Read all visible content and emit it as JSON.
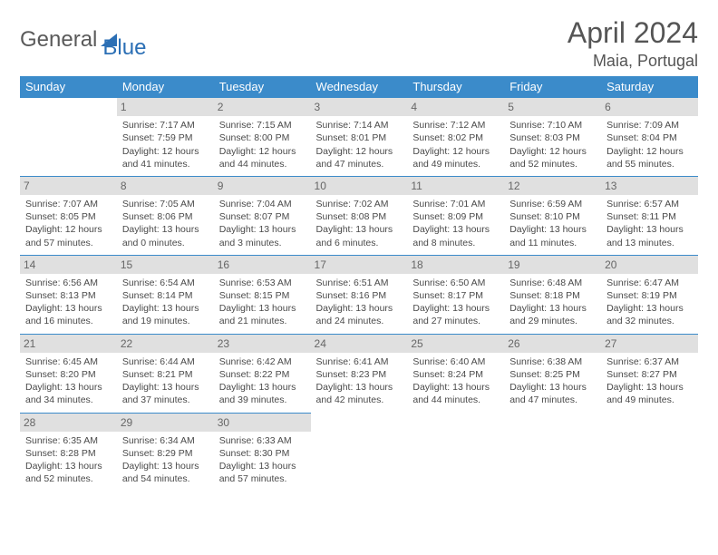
{
  "logo": {
    "part1": "General",
    "part2": "Blue"
  },
  "title": "April 2024",
  "location": "Maia, Portugal",
  "dayNames": [
    "Sunday",
    "Monday",
    "Tuesday",
    "Wednesday",
    "Thursday",
    "Friday",
    "Saturday"
  ],
  "colors": {
    "header_bg": "#3b8bca",
    "header_text": "#ffffff",
    "daynum_bg": "#e0e0e0",
    "rule": "#3b8bca",
    "body_text": "#4a4a4a",
    "logo_accent": "#2b6fb5"
  },
  "weeks": [
    [
      null,
      {
        "n": "1",
        "sr": "Sunrise: 7:17 AM",
        "ss": "Sunset: 7:59 PM",
        "dl": "Daylight: 12 hours and 41 minutes."
      },
      {
        "n": "2",
        "sr": "Sunrise: 7:15 AM",
        "ss": "Sunset: 8:00 PM",
        "dl": "Daylight: 12 hours and 44 minutes."
      },
      {
        "n": "3",
        "sr": "Sunrise: 7:14 AM",
        "ss": "Sunset: 8:01 PM",
        "dl": "Daylight: 12 hours and 47 minutes."
      },
      {
        "n": "4",
        "sr": "Sunrise: 7:12 AM",
        "ss": "Sunset: 8:02 PM",
        "dl": "Daylight: 12 hours and 49 minutes."
      },
      {
        "n": "5",
        "sr": "Sunrise: 7:10 AM",
        "ss": "Sunset: 8:03 PM",
        "dl": "Daylight: 12 hours and 52 minutes."
      },
      {
        "n": "6",
        "sr": "Sunrise: 7:09 AM",
        "ss": "Sunset: 8:04 PM",
        "dl": "Daylight: 12 hours and 55 minutes."
      }
    ],
    [
      {
        "n": "7",
        "sr": "Sunrise: 7:07 AM",
        "ss": "Sunset: 8:05 PM",
        "dl": "Daylight: 12 hours and 57 minutes."
      },
      {
        "n": "8",
        "sr": "Sunrise: 7:05 AM",
        "ss": "Sunset: 8:06 PM",
        "dl": "Daylight: 13 hours and 0 minutes."
      },
      {
        "n": "9",
        "sr": "Sunrise: 7:04 AM",
        "ss": "Sunset: 8:07 PM",
        "dl": "Daylight: 13 hours and 3 minutes."
      },
      {
        "n": "10",
        "sr": "Sunrise: 7:02 AM",
        "ss": "Sunset: 8:08 PM",
        "dl": "Daylight: 13 hours and 6 minutes."
      },
      {
        "n": "11",
        "sr": "Sunrise: 7:01 AM",
        "ss": "Sunset: 8:09 PM",
        "dl": "Daylight: 13 hours and 8 minutes."
      },
      {
        "n": "12",
        "sr": "Sunrise: 6:59 AM",
        "ss": "Sunset: 8:10 PM",
        "dl": "Daylight: 13 hours and 11 minutes."
      },
      {
        "n": "13",
        "sr": "Sunrise: 6:57 AM",
        "ss": "Sunset: 8:11 PM",
        "dl": "Daylight: 13 hours and 13 minutes."
      }
    ],
    [
      {
        "n": "14",
        "sr": "Sunrise: 6:56 AM",
        "ss": "Sunset: 8:13 PM",
        "dl": "Daylight: 13 hours and 16 minutes."
      },
      {
        "n": "15",
        "sr": "Sunrise: 6:54 AM",
        "ss": "Sunset: 8:14 PM",
        "dl": "Daylight: 13 hours and 19 minutes."
      },
      {
        "n": "16",
        "sr": "Sunrise: 6:53 AM",
        "ss": "Sunset: 8:15 PM",
        "dl": "Daylight: 13 hours and 21 minutes."
      },
      {
        "n": "17",
        "sr": "Sunrise: 6:51 AM",
        "ss": "Sunset: 8:16 PM",
        "dl": "Daylight: 13 hours and 24 minutes."
      },
      {
        "n": "18",
        "sr": "Sunrise: 6:50 AM",
        "ss": "Sunset: 8:17 PM",
        "dl": "Daylight: 13 hours and 27 minutes."
      },
      {
        "n": "19",
        "sr": "Sunrise: 6:48 AM",
        "ss": "Sunset: 8:18 PM",
        "dl": "Daylight: 13 hours and 29 minutes."
      },
      {
        "n": "20",
        "sr": "Sunrise: 6:47 AM",
        "ss": "Sunset: 8:19 PM",
        "dl": "Daylight: 13 hours and 32 minutes."
      }
    ],
    [
      {
        "n": "21",
        "sr": "Sunrise: 6:45 AM",
        "ss": "Sunset: 8:20 PM",
        "dl": "Daylight: 13 hours and 34 minutes."
      },
      {
        "n": "22",
        "sr": "Sunrise: 6:44 AM",
        "ss": "Sunset: 8:21 PM",
        "dl": "Daylight: 13 hours and 37 minutes."
      },
      {
        "n": "23",
        "sr": "Sunrise: 6:42 AM",
        "ss": "Sunset: 8:22 PM",
        "dl": "Daylight: 13 hours and 39 minutes."
      },
      {
        "n": "24",
        "sr": "Sunrise: 6:41 AM",
        "ss": "Sunset: 8:23 PM",
        "dl": "Daylight: 13 hours and 42 minutes."
      },
      {
        "n": "25",
        "sr": "Sunrise: 6:40 AM",
        "ss": "Sunset: 8:24 PM",
        "dl": "Daylight: 13 hours and 44 minutes."
      },
      {
        "n": "26",
        "sr": "Sunrise: 6:38 AM",
        "ss": "Sunset: 8:25 PM",
        "dl": "Daylight: 13 hours and 47 minutes."
      },
      {
        "n": "27",
        "sr": "Sunrise: 6:37 AM",
        "ss": "Sunset: 8:27 PM",
        "dl": "Daylight: 13 hours and 49 minutes."
      }
    ],
    [
      {
        "n": "28",
        "sr": "Sunrise: 6:35 AM",
        "ss": "Sunset: 8:28 PM",
        "dl": "Daylight: 13 hours and 52 minutes."
      },
      {
        "n": "29",
        "sr": "Sunrise: 6:34 AM",
        "ss": "Sunset: 8:29 PM",
        "dl": "Daylight: 13 hours and 54 minutes."
      },
      {
        "n": "30",
        "sr": "Sunrise: 6:33 AM",
        "ss": "Sunset: 8:30 PM",
        "dl": "Daylight: 13 hours and 57 minutes."
      },
      null,
      null,
      null,
      null
    ]
  ]
}
